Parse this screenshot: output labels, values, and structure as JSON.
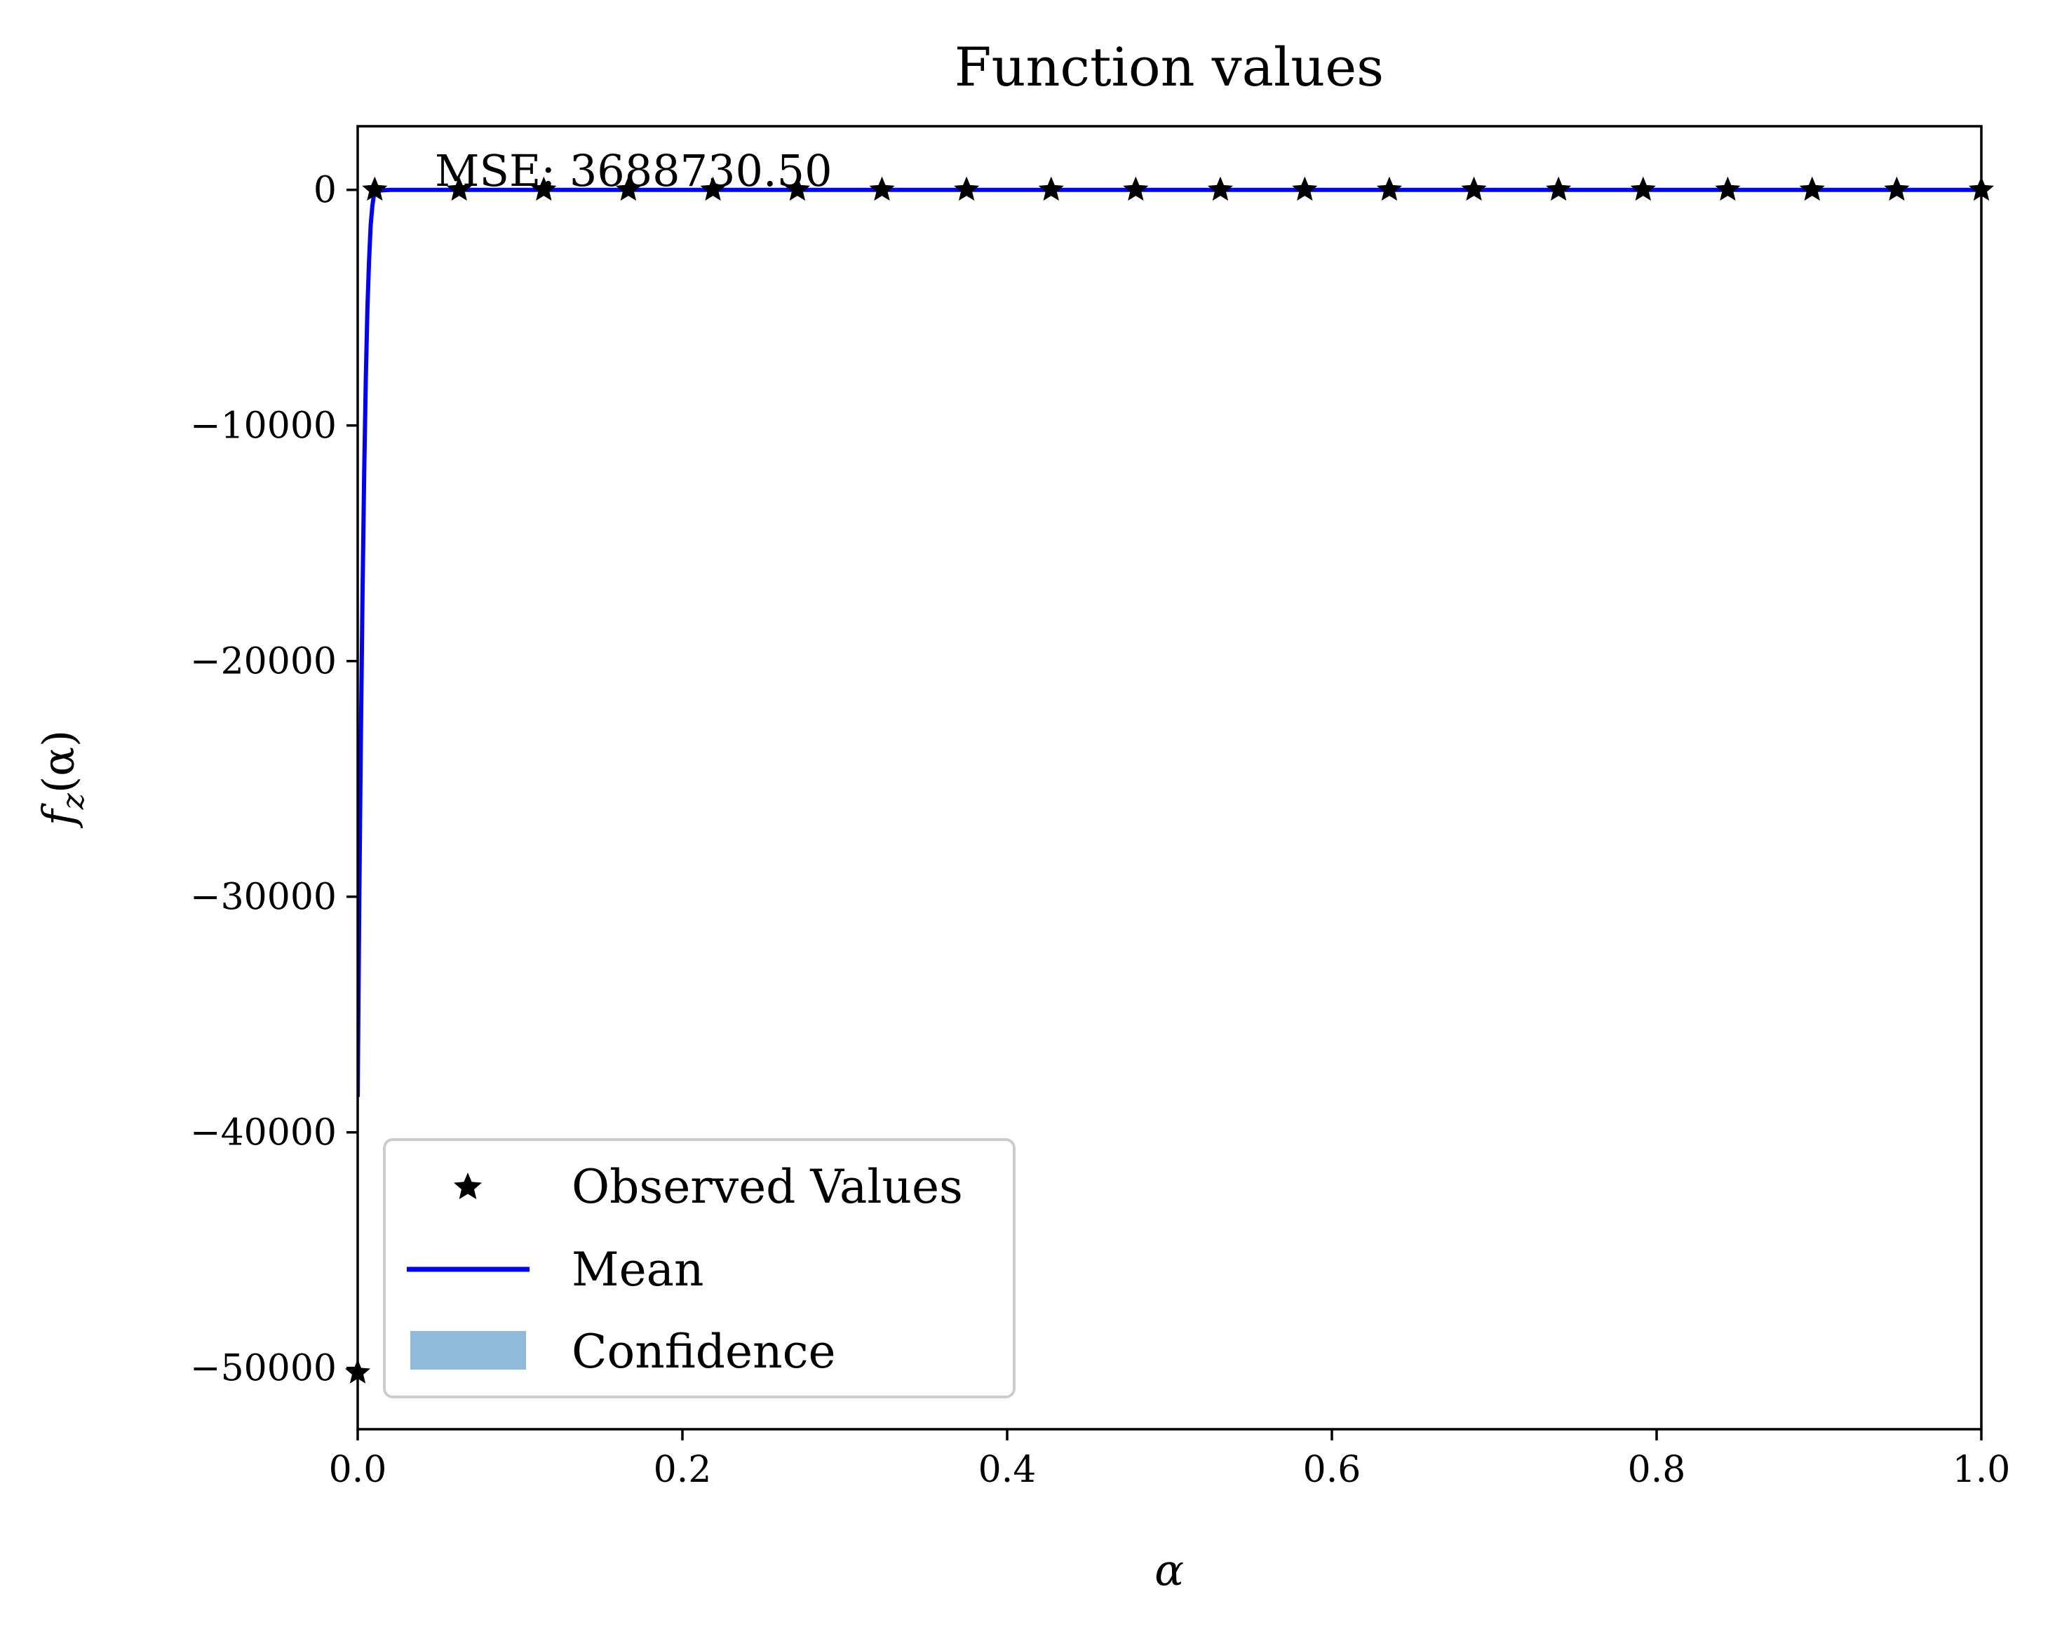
{
  "chart_data": {
    "type": "line",
    "title": "Function values",
    "xlabel": "α",
    "ylabel": "f_z(α)",
    "ylabel_base": "f",
    "ylabel_sub": "z",
    "ylabel_arg": "(α)",
    "xlim": [
      0.0,
      1.0
    ],
    "ylim": [
      -52600,
      2700
    ],
    "xticks": [
      0.0,
      0.2,
      0.4,
      0.6,
      0.8,
      1.0
    ],
    "xtick_labels": [
      "0.0",
      "0.2",
      "0.4",
      "0.6",
      "0.8",
      "1.0"
    ],
    "yticks": [
      0,
      -10000,
      -20000,
      -30000,
      -40000,
      -50000
    ],
    "ytick_labels": [
      "0",
      "−10000",
      "−20000",
      "−30000",
      "−40000",
      "−50000"
    ],
    "annotation": "MSE: 3688730.50",
    "legend_position": "lower-left",
    "grid": false,
    "series": [
      {
        "name": "Observed Values",
        "kind": "markers",
        "marker": "star",
        "color": "#000000",
        "x": [
          0.0,
          0.0105,
          0.0625,
          0.1146,
          0.1667,
          0.2188,
          0.2708,
          0.3229,
          0.375,
          0.4271,
          0.4792,
          0.5313,
          0.5833,
          0.6354,
          0.6875,
          0.7396,
          0.7917,
          0.8438,
          0.8958,
          0.9479,
          1.0
        ],
        "y": [
          -50200,
          0,
          0,
          0,
          0,
          0,
          0,
          0,
          0,
          0,
          0,
          0,
          0,
          0,
          0,
          0,
          0,
          0,
          0,
          0,
          0
        ]
      },
      {
        "name": "Mean",
        "kind": "line",
        "color": "#0000ff",
        "x": [
          0.0,
          0.001,
          0.002,
          0.003,
          0.004,
          0.005,
          0.006,
          0.007,
          0.008,
          0.009,
          0.01,
          0.012,
          0.015,
          0.02,
          0.05,
          0.1,
          0.2,
          0.4,
          0.6,
          0.8,
          1.0
        ],
        "y": [
          -38500,
          -30000,
          -23000,
          -17000,
          -12000,
          -8000,
          -5000,
          -3000,
          -1500,
          -700,
          -200,
          -60,
          -20,
          0,
          0,
          0,
          0,
          0,
          0,
          0,
          0
        ]
      },
      {
        "name": "Confidence",
        "kind": "band",
        "color": "#90bad9"
      }
    ]
  }
}
